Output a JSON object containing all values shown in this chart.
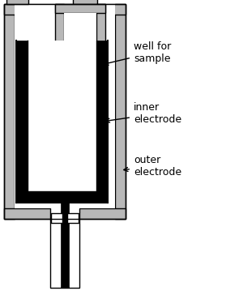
{
  "background_color": "#ffffff",
  "fig_width": 3.0,
  "fig_height": 3.59,
  "dpi": 100,
  "labels": {
    "well_for_sample": "well for\nsample",
    "inner_electrode": "inner\nelectrode",
    "outer_electrode": "outer\nelectrode"
  },
  "colors": {
    "gray": "#b8b8b8",
    "black": "#000000",
    "white": "#ffffff"
  },
  "font_size": 9
}
